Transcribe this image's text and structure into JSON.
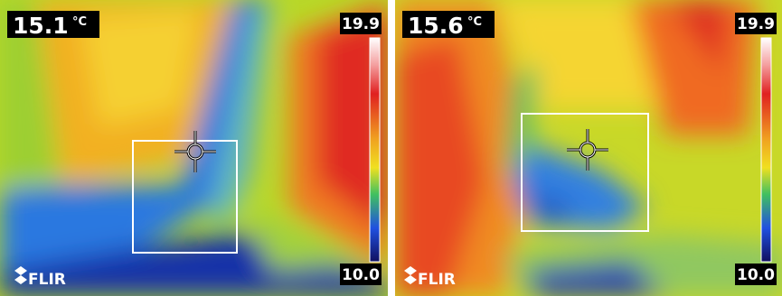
{
  "panels": [
    {
      "spot": "15.1",
      "unit": "°C",
      "scale_max": "19.9",
      "scale_min": "10.0",
      "logo": "FLIR"
    },
    {
      "spot": "15.6",
      "unit": "°C",
      "scale_max": "19.9",
      "scale_min": "10.0",
      "logo": "FLIR"
    }
  ]
}
